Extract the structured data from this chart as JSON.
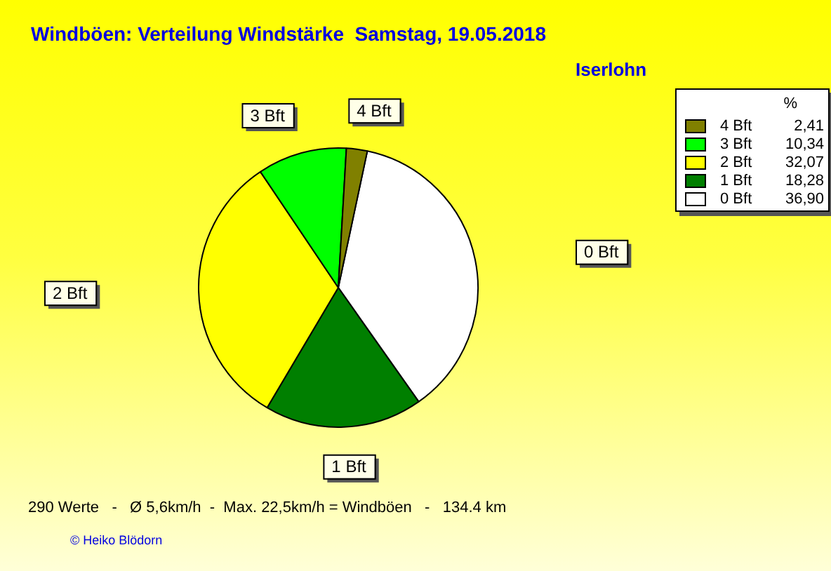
{
  "chart_data": {
    "type": "pie",
    "title": "Windböen: Verteilung Windstärke  Samstag, 19.05.2018",
    "subtitle": "Iserlohn",
    "legend_title": "%",
    "categories": [
      "0 Bft",
      "1 Bft",
      "2 Bft",
      "3 Bft",
      "4 Bft"
    ],
    "values": [
      36.9,
      18.28,
      32.07,
      10.34,
      2.41
    ],
    "value_labels": [
      "36,90",
      "18,28",
      "32,07",
      "10,34",
      "2,41"
    ],
    "colors": [
      "#ffffff",
      "#007f00",
      "#ffff00",
      "#00ff00",
      "#808000"
    ],
    "legend": "top right",
    "annotations": [
      "290 Werte   -   Ø 5,6km/h  -  Max. 22,5km/h = Windböen   -   134.4 km",
      "© Heiko Blödorn"
    ]
  }
}
